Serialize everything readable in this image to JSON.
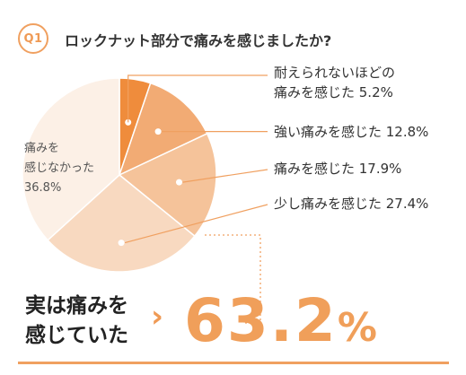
{
  "header": {
    "badge": "Q1",
    "title": "ロックナット部分で痛みを感じましたか?"
  },
  "colors": {
    "accent": "#f09f5a",
    "slice_1": "#ef8c3c",
    "slice_2": "#f2ab74",
    "slice_3": "#f5c39a",
    "slice_4": "#f8d9c0",
    "slice_5": "#fcf0e6",
    "leader": "#f0a060"
  },
  "chart_data": {
    "type": "pie",
    "slices": [
      {
        "label": "耐えられないほどの\n痛みを感じた 5.2%",
        "value": 5.2
      },
      {
        "label": "強い痛みを感じた 12.8%",
        "value": 12.8
      },
      {
        "label": "痛みを感じた 17.9%",
        "value": 17.9
      },
      {
        "label": "少し痛みを感じた 27.4%",
        "value": 27.4
      },
      {
        "label": "痛みを\n感じなかった\n36.8%",
        "value": 36.8
      }
    ]
  },
  "summary": {
    "text": "実は痛みを\n感じていた",
    "arrow": "›",
    "value": "63.2",
    "unit": "%"
  }
}
